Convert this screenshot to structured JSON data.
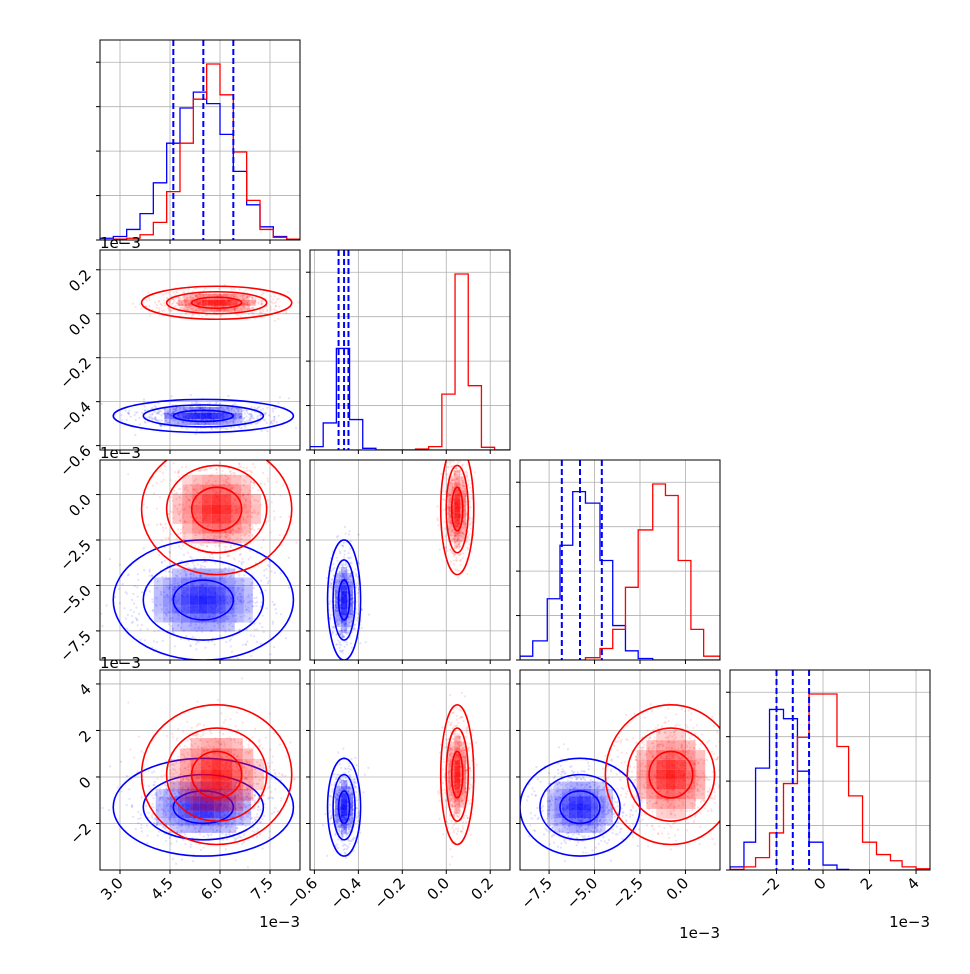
{
  "chart_data": {
    "type": "corner",
    "grid": true,
    "variables": [
      {
        "ticks": [
          3.0,
          4.5,
          6.0,
          7.5
        ],
        "tick_labels": [
          "3.0",
          "4.5",
          "6.0",
          "7.5"
        ],
        "range": [
          2.4,
          8.4
        ],
        "scale_label": "1e−3"
      },
      {
        "ticks": [
          -0.6,
          -0.4,
          -0.2,
          0.0,
          0.2
        ],
        "tick_labels": [
          "−0.6",
          "−0.4",
          "−0.2",
          "0.0",
          "0.2"
        ],
        "range": [
          -0.62,
          0.29
        ],
        "scale_label": "1e−3"
      },
      {
        "ticks": [
          -7.5,
          -5.0,
          -2.5,
          0.0
        ],
        "tick_labels": [
          "−7.5",
          "−5.0",
          "−2.5",
          "0.0"
        ],
        "range": [
          -9.1,
          1.9
        ],
        "scale_label": "1e−3"
      },
      {
        "ticks": [
          -2,
          0,
          2,
          4
        ],
        "tick_labels": [
          "−2",
          "0",
          "2",
          "4"
        ],
        "range": [
          -4.0,
          4.6
        ],
        "scale_label": "1e−3"
      }
    ],
    "series": [
      {
        "color": "#0000ff",
        "mean": [
          5.5,
          -0.465,
          -5.8,
          -1.3
        ],
        "std": [
          0.9,
          0.025,
          1.1,
          0.7
        ],
        "quantiles": [
          [
            4.6,
            5.5,
            6.4
          ],
          [
            -0.49,
            -0.465,
            -0.445
          ],
          [
            -6.8,
            -5.8,
            -4.6
          ],
          [
            -2.0,
            -1.3,
            -0.6
          ]
        ]
      },
      {
        "color": "#ff0000",
        "mean": [
          5.9,
          0.05,
          -0.8,
          0.1
        ],
        "std": [
          0.75,
          0.025,
          1.2,
          1.0
        ]
      }
    ],
    "histograms": [
      {
        "bin_edges": [
          2.4,
          2.8,
          3.2,
          3.6,
          4.0,
          4.4,
          4.8,
          5.2,
          5.6,
          6.0,
          6.4,
          6.8,
          7.2,
          7.6,
          8.0,
          8.4
        ],
        "counts": [
          [
            2,
            4,
            12,
            30,
            65,
            110,
            150,
            168,
            155,
            120,
            78,
            40,
            15,
            4,
            1
          ],
          [
            0,
            1,
            2,
            6,
            20,
            55,
            110,
            160,
            200,
            165,
            100,
            45,
            12,
            3,
            1
          ]
        ]
      },
      {
        "bin_edges": [
          -0.62,
          -0.56,
          -0.5,
          -0.44,
          -0.38,
          -0.32,
          -0.26,
          -0.2,
          -0.14,
          -0.08,
          -0.02,
          0.04,
          0.1,
          0.16,
          0.22,
          0.29
        ],
        "counts": [
          [
            10,
            80,
            300,
            90,
            5,
            0,
            0,
            0,
            0,
            0,
            0,
            0,
            0,
            0,
            0
          ],
          [
            0,
            0,
            0,
            0,
            0,
            0,
            0,
            0,
            3,
            10,
            165,
            520,
            190,
            8,
            0
          ]
        ]
      },
      {
        "bin_edges": [
          -9.1,
          -8.4,
          -7.6,
          -6.9,
          -6.2,
          -5.5,
          -4.7,
          -4.0,
          -3.3,
          -2.6,
          -1.8,
          -1.1,
          -0.4,
          0.3,
          1.0,
          1.9
        ],
        "counts": [
          [
            5,
            25,
            80,
            150,
            220,
            205,
            130,
            45,
            12,
            2,
            0,
            0,
            0,
            0,
            0
          ],
          [
            0,
            0,
            0,
            0,
            0,
            3,
            15,
            40,
            95,
            170,
            230,
            215,
            130,
            40,
            5
          ]
        ]
      },
      {
        "bin_edges": [
          -4.0,
          -3.4,
          -2.9,
          -2.3,
          -1.7,
          -1.1,
          -0.6,
          0.0,
          0.6,
          1.1,
          1.7,
          2.3,
          2.9,
          3.4,
          4.0,
          4.6
        ],
        "counts": [
          [
            5,
            45,
            165,
            260,
            245,
            160,
            45,
            8,
            1,
            0,
            0,
            0,
            0,
            0,
            0
          ],
          [
            1,
            5,
            20,
            60,
            140,
            215,
            285,
            285,
            200,
            120,
            45,
            25,
            15,
            5,
            2
          ]
        ]
      }
    ]
  }
}
